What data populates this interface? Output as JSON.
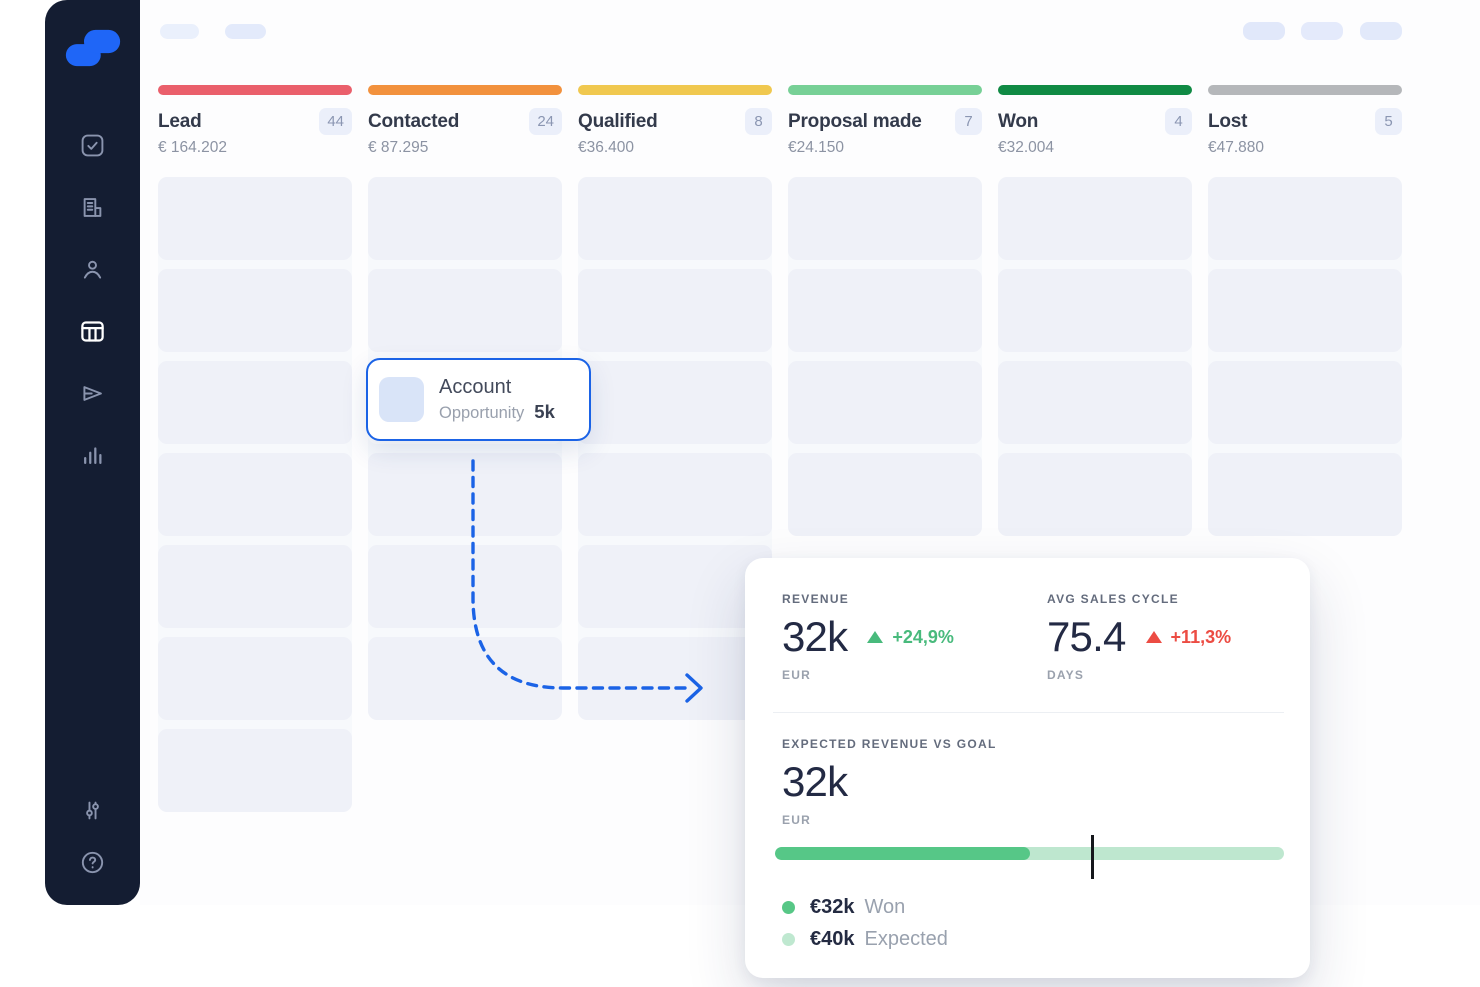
{
  "colors": {
    "accent_blue": "#1B63E6",
    "sidebar_bg": "#141D32",
    "logo_blue": "#1F66F7"
  },
  "topbar": {
    "left_pill_count": 2,
    "right_pill_count": 3
  },
  "sidebar": {
    "nav_items": [
      {
        "name": "tasks",
        "active": false
      },
      {
        "name": "companies",
        "active": false
      },
      {
        "name": "contacts",
        "active": false
      },
      {
        "name": "pipeline",
        "active": true
      },
      {
        "name": "campaigns",
        "active": false
      },
      {
        "name": "insights",
        "active": false
      }
    ],
    "footer_items": [
      {
        "name": "settings",
        "active": false
      },
      {
        "name": "help",
        "active": false
      }
    ]
  },
  "pipeline": {
    "stages": [
      {
        "label": "Lead",
        "count": "44",
        "total": "€ 164.202",
        "bar_color": "#EA5F6B",
        "slots": [
          1,
          1,
          1,
          1,
          1,
          1,
          1
        ]
      },
      {
        "label": "Contacted",
        "count": "24",
        "total": "€ 87.295",
        "bar_color": "#F2913D",
        "slots": [
          1,
          1,
          0,
          1,
          1,
          1
        ]
      },
      {
        "label": "Qualified",
        "count": "8",
        "total": "€36.400",
        "bar_color": "#F0C84F",
        "slots": [
          1,
          1,
          1,
          1,
          1,
          1
        ]
      },
      {
        "label": "Proposal made",
        "count": "7",
        "total": "€24.150",
        "bar_color": "#77D096",
        "slots": [
          1,
          1,
          1,
          1
        ]
      },
      {
        "label": "Won",
        "count": "4",
        "total": "€32.004",
        "bar_color": "#108A44",
        "slots": [
          1,
          1,
          1,
          1
        ]
      },
      {
        "label": "Lost",
        "count": "5",
        "total": "€47.880",
        "bar_color": "#B5B7BA",
        "slots": [
          1,
          1,
          1,
          1
        ]
      }
    ]
  },
  "opportunity_card": {
    "title": "Account",
    "subtitle": "Opportunity",
    "value": "5k"
  },
  "stats": {
    "revenue": {
      "label": "REVENUE",
      "value": "32k",
      "unit": "EUR",
      "delta": "+24,9%",
      "trend": "up",
      "delta_color": "#48BA7C"
    },
    "avg_sales_cycle": {
      "label": "AVG SALES CYCLE",
      "value": "75.4",
      "unit": "DAYS",
      "delta": "+11,3%",
      "trend": "up",
      "delta_color": "#EC4C43"
    },
    "expected_revenue": {
      "label": "EXPECTED REVENUE VS GOAL",
      "value": "32k",
      "unit": "EUR",
      "progress_percent": 50,
      "goal_marker_percent": 62,
      "bar_fill_color": "#56C787",
      "bar_track_color": "#BEE7CF",
      "legend": [
        {
          "value": "€32k",
          "label": "Won",
          "dot_color": "#57C786"
        },
        {
          "value": "€40k",
          "label": "Expected",
          "dot_color": "#BFE8D0"
        }
      ]
    }
  }
}
